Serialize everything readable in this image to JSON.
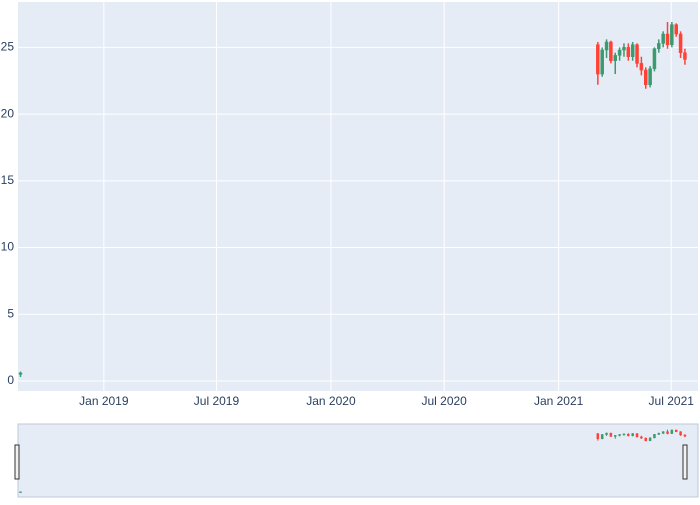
{
  "chart_data": {
    "type": "candlestick",
    "x": [
      "2018-08-20",
      "2021-03-05",
      "2021-03-12",
      "2021-03-19",
      "2021-03-26",
      "2021-04-02",
      "2021-04-09",
      "2021-04-16",
      "2021-04-23",
      "2021-04-30",
      "2021-05-07",
      "2021-05-14",
      "2021-05-21",
      "2021-05-28",
      "2021-06-04",
      "2021-06-11",
      "2021-06-18",
      "2021-06-25",
      "2021-07-02",
      "2021-07-09",
      "2021-07-16",
      "2021-07-23"
    ],
    "open": [
      0.5,
      25.2,
      23.0,
      24.8,
      25.4,
      24.0,
      24.4,
      24.8,
      25.0,
      24.3,
      25.2,
      23.8,
      23.3,
      22.2,
      23.4,
      24.9,
      25.3,
      26.0,
      25.2,
      26.7,
      26.0,
      24.6
    ],
    "high": [
      0.7,
      25.4,
      25.0,
      25.6,
      25.5,
      24.6,
      25.0,
      25.3,
      25.3,
      25.4,
      25.3,
      24.3,
      23.5,
      23.6,
      25.0,
      25.6,
      26.2,
      26.9,
      26.9,
      26.8,
      26.2,
      24.9
    ],
    "low": [
      0.3,
      22.2,
      22.8,
      24.2,
      23.8,
      23.0,
      24.0,
      24.3,
      24.0,
      24.0,
      23.5,
      22.9,
      21.9,
      22.0,
      23.2,
      24.6,
      25.0,
      24.9,
      25.0,
      25.8,
      24.2,
      23.7
    ],
    "close": [
      0.6,
      23.0,
      24.8,
      25.4,
      24.0,
      24.4,
      24.8,
      25.0,
      24.3,
      25.2,
      23.8,
      23.3,
      22.2,
      23.4,
      24.9,
      25.3,
      26.0,
      25.2,
      26.7,
      26.0,
      24.6,
      24.1
    ],
    "increasing_color": "#3D9970",
    "decreasing_color": "#FF4136",
    "xlim": [
      "2018-08-16",
      "2021-08-13"
    ],
    "xticks": [
      {
        "value": "2019-01-01",
        "label": "Jan 2019"
      },
      {
        "value": "2019-07-01",
        "label": "Jul 2019"
      },
      {
        "value": "2020-01-01",
        "label": "Jan 2020"
      },
      {
        "value": "2020-07-01",
        "label": "Jul 2020"
      },
      {
        "value": "2021-01-01",
        "label": "Jan 2021"
      },
      {
        "value": "2021-07-01",
        "label": "Jul 2021"
      }
    ],
    "ylim": [
      -0.75,
      28.4
    ],
    "yticks": [
      0,
      5,
      10,
      15,
      20,
      25
    ],
    "grid": true,
    "rangeslider": true
  }
}
